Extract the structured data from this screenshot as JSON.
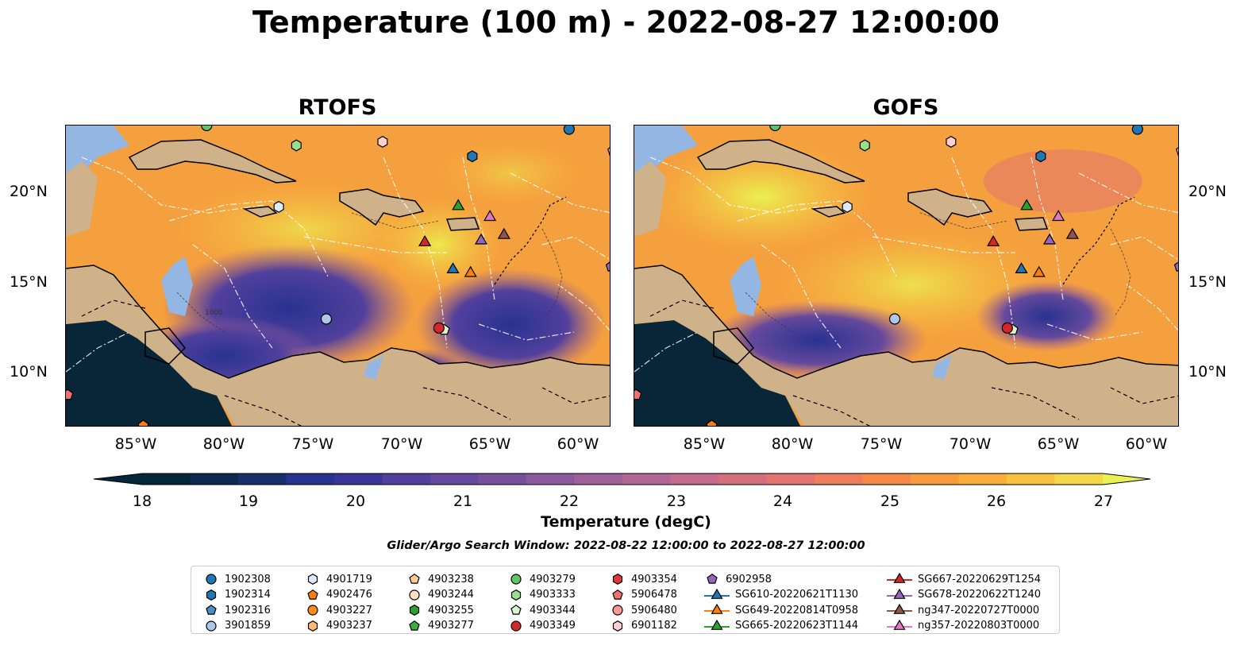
{
  "title": "Temperature (100 m) - 2022-08-27 12:00:00",
  "panels": [
    {
      "title": "RTOFS",
      "lat_labels": [
        "20°N",
        "15°N",
        "10°N"
      ]
    },
    {
      "title": "GOFS",
      "lat_labels": [
        "20°N",
        "15°N",
        "10°N"
      ]
    }
  ],
  "lon_labels": [
    "85°W",
    "80°W",
    "75°W",
    "70°W",
    "65°W",
    "60°W"
  ],
  "contour_label": "1000",
  "colorbar": {
    "label": "Temperature (degC)",
    "ticks": [
      "18",
      "19",
      "20",
      "21",
      "22",
      "23",
      "24",
      "25",
      "26",
      "27"
    ],
    "min": 18,
    "max": 27,
    "colors": [
      "#04263a",
      "#0c2a4f",
      "#17306b",
      "#283291",
      "#3a3699",
      "#52409c",
      "#65499c",
      "#77529c",
      "#8a5a9b",
      "#9d6099",
      "#b06795",
      "#c36b8c",
      "#d46f7e",
      "#e2756f",
      "#ee7d5e",
      "#f6894a",
      "#f89a3e",
      "#f9ad3b",
      "#f8c240",
      "#f4d84a",
      "#ebf150"
    ],
    "under_color": "#04263a",
    "over_color": "#ebf150"
  },
  "search_window": "Glider/Argo Search Window: 2022-08-22 12:00:00 to 2022-08-27 12:00:00",
  "map_colors": {
    "land": "#cfb28a",
    "shelf": "#94b6e2",
    "deep_land_ocean": "#082638"
  },
  "legend": [
    {
      "label": "1902308",
      "marker": "circle",
      "color": "#1f77b4"
    },
    {
      "label": "1902314",
      "marker": "hexagon",
      "color": "#1f77b4"
    },
    {
      "label": "1902316",
      "marker": "pentagon",
      "color": "#4a90c8"
    },
    {
      "label": "3901859",
      "marker": "circle",
      "color": "#aec7e8"
    },
    {
      "label": "4901719",
      "marker": "hexagon",
      "color": "#dbe9f8"
    },
    {
      "label": "4902476",
      "marker": "pentagon",
      "color": "#ff7f0e"
    },
    {
      "label": "4903227",
      "marker": "circle",
      "color": "#ff8c1a"
    },
    {
      "label": "4903237",
      "marker": "hexagon",
      "color": "#ffbb78"
    },
    {
      "label": "4903238",
      "marker": "pentagon",
      "color": "#ffcc99"
    },
    {
      "label": "4903244",
      "marker": "circle",
      "color": "#ffe0c0"
    },
    {
      "label": "4903255",
      "marker": "hexagon",
      "color": "#2ca02c"
    },
    {
      "label": "4903277",
      "marker": "pentagon",
      "color": "#3cb043"
    },
    {
      "label": "4903279",
      "marker": "circle",
      "color": "#62c462"
    },
    {
      "label": "4903333",
      "marker": "hexagon",
      "color": "#98df8a"
    },
    {
      "label": "4903344",
      "marker": "pentagon",
      "color": "#d8f5d0"
    },
    {
      "label": "4903349",
      "marker": "circle",
      "color": "#d62728"
    },
    {
      "label": "4903354",
      "marker": "hexagon",
      "color": "#e0383a"
    },
    {
      "label": "5906478",
      "marker": "pentagon",
      "color": "#f07070"
    },
    {
      "label": "5906480",
      "marker": "circle",
      "color": "#ff9896"
    },
    {
      "label": "6901182",
      "marker": "hexagon",
      "color": "#ffd0d0"
    },
    {
      "label": "6902958",
      "marker": "pentagon",
      "color": "#9467bd"
    },
    {
      "label": "SG610-20220621T1130",
      "marker": "triangle",
      "color": "#1f77b4"
    },
    {
      "label": "SG649-20220814T0958",
      "marker": "triangle",
      "color": "#ff7f0e"
    },
    {
      "label": "SG665-20220623T1144",
      "marker": "triangle",
      "color": "#2ca02c"
    },
    {
      "label": "SG667-20220629T1254",
      "marker": "triangle",
      "color": "#d62728"
    },
    {
      "label": "SG678-20220622T1240",
      "marker": "triangle",
      "color": "#9467bd"
    },
    {
      "label": "ng347-20220727T0000",
      "marker": "triangle",
      "color": "#8c564b"
    },
    {
      "label": "ng357-20220803T0000",
      "marker": "triangle",
      "color": "#e377c2"
    }
  ],
  "observations": [
    {
      "id": "1902308",
      "lon": -60.4,
      "lat": 23.6
    },
    {
      "id": "1902314",
      "lon": -65.9,
      "lat": 22.1
    },
    {
      "id": "3901859",
      "lon": -74.2,
      "lat": 13.1
    },
    {
      "id": "4901719",
      "lon": -76.9,
      "lat": 19.3
    },
    {
      "id": "4902476",
      "lon": -84.6,
      "lat": 7.2
    },
    {
      "id": "4903279",
      "lon": -81.0,
      "lat": 23.8
    },
    {
      "id": "4903333",
      "lon": -75.9,
      "lat": 22.7
    },
    {
      "id": "4903344",
      "lon": -67.5,
      "lat": 12.5
    },
    {
      "id": "4903349",
      "lon": -67.8,
      "lat": 12.6
    },
    {
      "id": "5906478",
      "lon": -88.9,
      "lat": 8.9
    },
    {
      "id": "6901182",
      "lon": -71.0,
      "lat": 22.9
    },
    {
      "id": "6902958",
      "lon": -58.0,
      "lat": 16.0
    },
    {
      "id": "4903238",
      "lon": -57.9,
      "lat": 22.4
    },
    {
      "id": "SG610-20220621T1130",
      "lon": -67.0,
      "lat": 15.9
    },
    {
      "id": "SG649-20220814T0958",
      "lon": -66.0,
      "lat": 15.7
    },
    {
      "id": "SG665-20220623T1144",
      "lon": -66.7,
      "lat": 19.4
    },
    {
      "id": "SG667-20220629T1254",
      "lon": -68.6,
      "lat": 17.4
    },
    {
      "id": "SG678-20220622T1240",
      "lon": -65.4,
      "lat": 17.5
    },
    {
      "id": "ng347-20220727T0000",
      "lon": -64.1,
      "lat": 17.8
    },
    {
      "id": "ng357-20220803T0000",
      "lon": -64.9,
      "lat": 18.8
    }
  ]
}
